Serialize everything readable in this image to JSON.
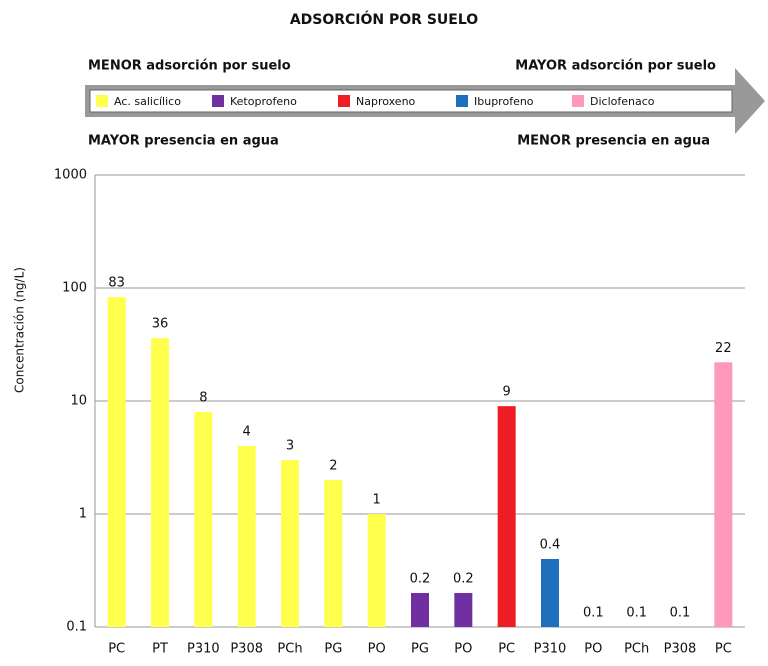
{
  "chart_data": {
    "type": "bar",
    "title": "ADSORCIÓN POR SUELO",
    "annotations": [
      "MENOR adsorción por suelo",
      "MAYOR adsorción por suelo",
      "MAYOR presencia en agua",
      "MENOR presencia en agua"
    ],
    "y_label": "Concentración (ng/L)",
    "log_scale": true,
    "grid": true,
    "ylim": [
      0.1,
      1000
    ],
    "yticks": [
      0.1,
      1,
      10,
      100,
      1000
    ],
    "categories": [
      "PC",
      "PT",
      "P310",
      "P308",
      "PCh",
      "PG",
      "PO",
      "PG",
      "PO",
      "PC",
      "P310",
      "PO",
      "PCh",
      "P308",
      "PC"
    ],
    "series": [
      {
        "name": "Ac. salicílico",
        "color": "#ffff4d",
        "values": [
          83,
          36,
          8,
          4,
          3,
          2,
          1,
          null,
          null,
          null,
          null,
          null,
          null,
          null,
          null
        ]
      },
      {
        "name": "Ketoprofeno",
        "color": "#7030a0",
        "values": [
          null,
          null,
          null,
          null,
          null,
          null,
          null,
          0.2,
          0.2,
          null,
          null,
          null,
          null,
          null,
          null
        ]
      },
      {
        "name": "Naproxeno",
        "color": "#ee1c24",
        "values": [
          null,
          null,
          null,
          null,
          null,
          null,
          null,
          null,
          null,
          9,
          null,
          null,
          null,
          null,
          null
        ]
      },
      {
        "name": "Ibuprofeno",
        "color": "#1f6fbf",
        "values": [
          null,
          null,
          null,
          null,
          null,
          null,
          null,
          null,
          null,
          null,
          0.4,
          0.1,
          0.1,
          0.1,
          null
        ]
      },
      {
        "name": "Diclofenaco",
        "color": "#ff99bb",
        "values": [
          null,
          null,
          null,
          null,
          null,
          null,
          null,
          null,
          null,
          null,
          null,
          null,
          null,
          null,
          22
        ]
      }
    ]
  }
}
